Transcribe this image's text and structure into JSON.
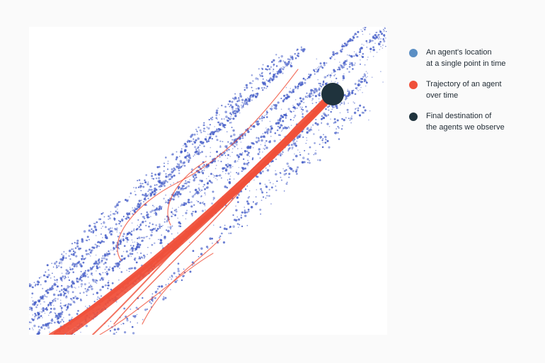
{
  "legend": {
    "items": [
      {
        "label": "An agent's location\nat a single point in time",
        "color": "#5b8fc4",
        "icon": "dot-icon"
      },
      {
        "label": "Trajectory of an agent\nover time",
        "color": "#f0503a",
        "icon": "dot-icon"
      },
      {
        "label": "Final destination of\nthe agents we observe",
        "color": "#1f333d",
        "icon": "dot-icon"
      }
    ]
  },
  "colors": {
    "page_background": "#fafafa",
    "panel_background": "#ffffff",
    "agent_points": "#4a62c9",
    "trajectory": "#f0503a",
    "destination": "#1f333d"
  }
}
